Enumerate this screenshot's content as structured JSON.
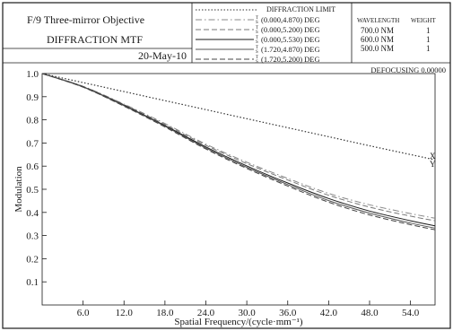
{
  "header": {
    "title_line1": "F/9 Three-mirror   Objective",
    "title_line2": "DIFFRACTION  MTF",
    "date": "20-May-10",
    "legend_title": "DIFFRACTION LIMIT",
    "field_labels": [
      {
        "tag": "T",
        "sag": "S",
        "text": "(0.000,4.870)  DEG"
      },
      {
        "tag": "T",
        "sag": "S",
        "text": "(0.000,5.200)  DEG"
      },
      {
        "tag": "T",
        "sag": "S",
        "text": "(0.000,5.530)  DEG"
      },
      {
        "tag": "T",
        "sag": "S",
        "text": "(1.720,4.870)  DEG"
      },
      {
        "tag": "T",
        "sag": "S",
        "text": "(1.720,5.200)  DEG"
      }
    ],
    "wavelength_header": "WAVELENGTH",
    "weight_header": "WEIGHT",
    "wavelengths": [
      {
        "wl": "700.0 NM",
        "weight": "1"
      },
      {
        "wl": "600.0 NM",
        "weight": "1"
      },
      {
        "wl": "500.0 NM",
        "weight": "1"
      }
    ],
    "defocusing": "DEFOCUSING 0.00000"
  },
  "chart_data": {
    "type": "line",
    "xlabel": "Spatial Frequency/(cycle·mm⁻¹)",
    "ylabel": "Modulation",
    "xlim": [
      0,
      57.6
    ],
    "ylim": [
      0,
      1.0
    ],
    "x_ticks": [
      6.0,
      12.0,
      18.0,
      24.0,
      30.0,
      36.0,
      42.0,
      48.0,
      54.0
    ],
    "x_tick_labels": [
      "6.0",
      "12.0",
      "18.0",
      "24.0",
      "30.0",
      "36.0",
      "42.0",
      "48.0",
      "54.0"
    ],
    "y_ticks": [
      0.1,
      0.2,
      0.3,
      0.4,
      0.5,
      0.6,
      0.7,
      0.8,
      0.9,
      1.0
    ],
    "y_tick_labels": [
      "0.1",
      "0.2",
      "0.3",
      "0.4",
      "0.5",
      "0.6",
      "0.7",
      "0.8",
      "0.9",
      "1.0"
    ],
    "end_labels": [
      "X",
      "Y"
    ],
    "x": [
      0,
      6,
      12,
      18,
      24,
      30,
      36,
      42,
      48,
      54,
      57.6
    ],
    "series": [
      {
        "name": "DIFFRACTION LIMIT",
        "style": "dotted",
        "color": "#333333",
        "values": [
          1.0,
          0.961,
          0.922,
          0.883,
          0.844,
          0.805,
          0.766,
          0.727,
          0.688,
          0.65,
          0.627
        ]
      },
      {
        "style": "dashdot",
        "color": "#888888",
        "values": [
          1.0,
          0.945,
          0.868,
          0.784,
          0.695,
          0.617,
          0.547,
          0.482,
          0.433,
          0.395,
          0.375
        ]
      },
      {
        "style": "dashed",
        "color": "#777777",
        "values": [
          1.0,
          0.944,
          0.866,
          0.78,
          0.69,
          0.611,
          0.54,
          0.474,
          0.423,
          0.384,
          0.364
        ]
      },
      {
        "style": "solid",
        "color": "#1a1a1a",
        "values": [
          1.0,
          0.943,
          0.863,
          0.775,
          0.683,
          0.601,
          0.527,
          0.46,
          0.406,
          0.364,
          0.342
        ]
      },
      {
        "style": "solid",
        "color": "#555555",
        "values": [
          1.0,
          0.942,
          0.861,
          0.772,
          0.678,
          0.595,
          0.52,
          0.451,
          0.397,
          0.354,
          0.332
        ]
      },
      {
        "style": "dashed",
        "color": "#444444",
        "values": [
          1.0,
          0.941,
          0.859,
          0.769,
          0.674,
          0.59,
          0.514,
          0.444,
          0.389,
          0.347,
          0.325
        ]
      }
    ]
  }
}
